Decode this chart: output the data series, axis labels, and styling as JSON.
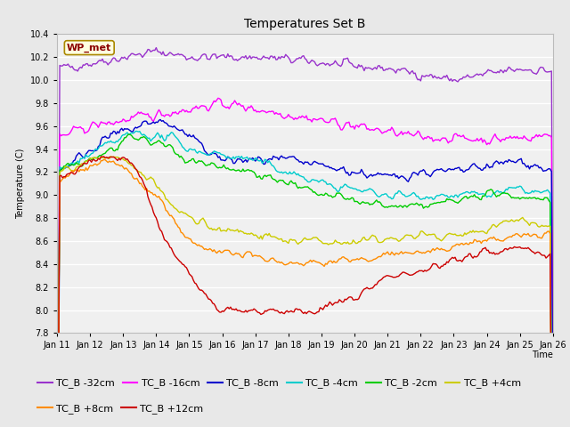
{
  "title": "Temperatures Set B",
  "xlabel": "Time",
  "ylabel": "Temperature (C)",
  "xlim": [
    0,
    360
  ],
  "ylim": [
    7.8,
    10.4
  ],
  "yticks": [
    7.8,
    8.0,
    8.2,
    8.4,
    8.6,
    8.8,
    9.0,
    9.2,
    9.4,
    9.6,
    9.8,
    10.0,
    10.2,
    10.4
  ],
  "xtick_labels": [
    "Jan 11",
    "Jan 12",
    "Jan 13",
    "Jan 14",
    "Jan 15",
    "Jan 16",
    "Jan 17",
    "Jan 18",
    "Jan 19",
    "Jan 20",
    "Jan 21",
    "Jan 22",
    "Jan 23",
    "Jan 24",
    "Jan 25",
    "Jan 26"
  ],
  "xtick_positions": [
    0,
    24,
    48,
    72,
    96,
    120,
    144,
    168,
    192,
    216,
    240,
    264,
    288,
    312,
    336,
    360
  ],
  "annotation_text": "WP_met",
  "series": [
    {
      "label": "TC_B -32cm",
      "color": "#9933CC",
      "linewidth": 1.0
    },
    {
      "label": "TC_B -16cm",
      "color": "#FF00FF",
      "linewidth": 1.0
    },
    {
      "label": "TC_B -8cm",
      "color": "#0000CC",
      "linewidth": 1.0
    },
    {
      "label": "TC_B -4cm",
      "color": "#00CCCC",
      "linewidth": 1.0
    },
    {
      "label": "TC_B -2cm",
      "color": "#00CC00",
      "linewidth": 1.0
    },
    {
      "label": "TC_B +4cm",
      "color": "#CCCC00",
      "linewidth": 1.0
    },
    {
      "label": "TC_B +8cm",
      "color": "#FF8C00",
      "linewidth": 1.0
    },
    {
      "label": "TC_B +12cm",
      "color": "#CC0000",
      "linewidth": 1.0
    }
  ],
  "fig_facecolor": "#E8E8E8",
  "plot_facecolor": "#F0F0F0",
  "grid_color": "#FFFFFF",
  "title_fontsize": 10,
  "axis_fontsize": 7,
  "tick_fontsize": 7,
  "legend_fontsize": 8
}
